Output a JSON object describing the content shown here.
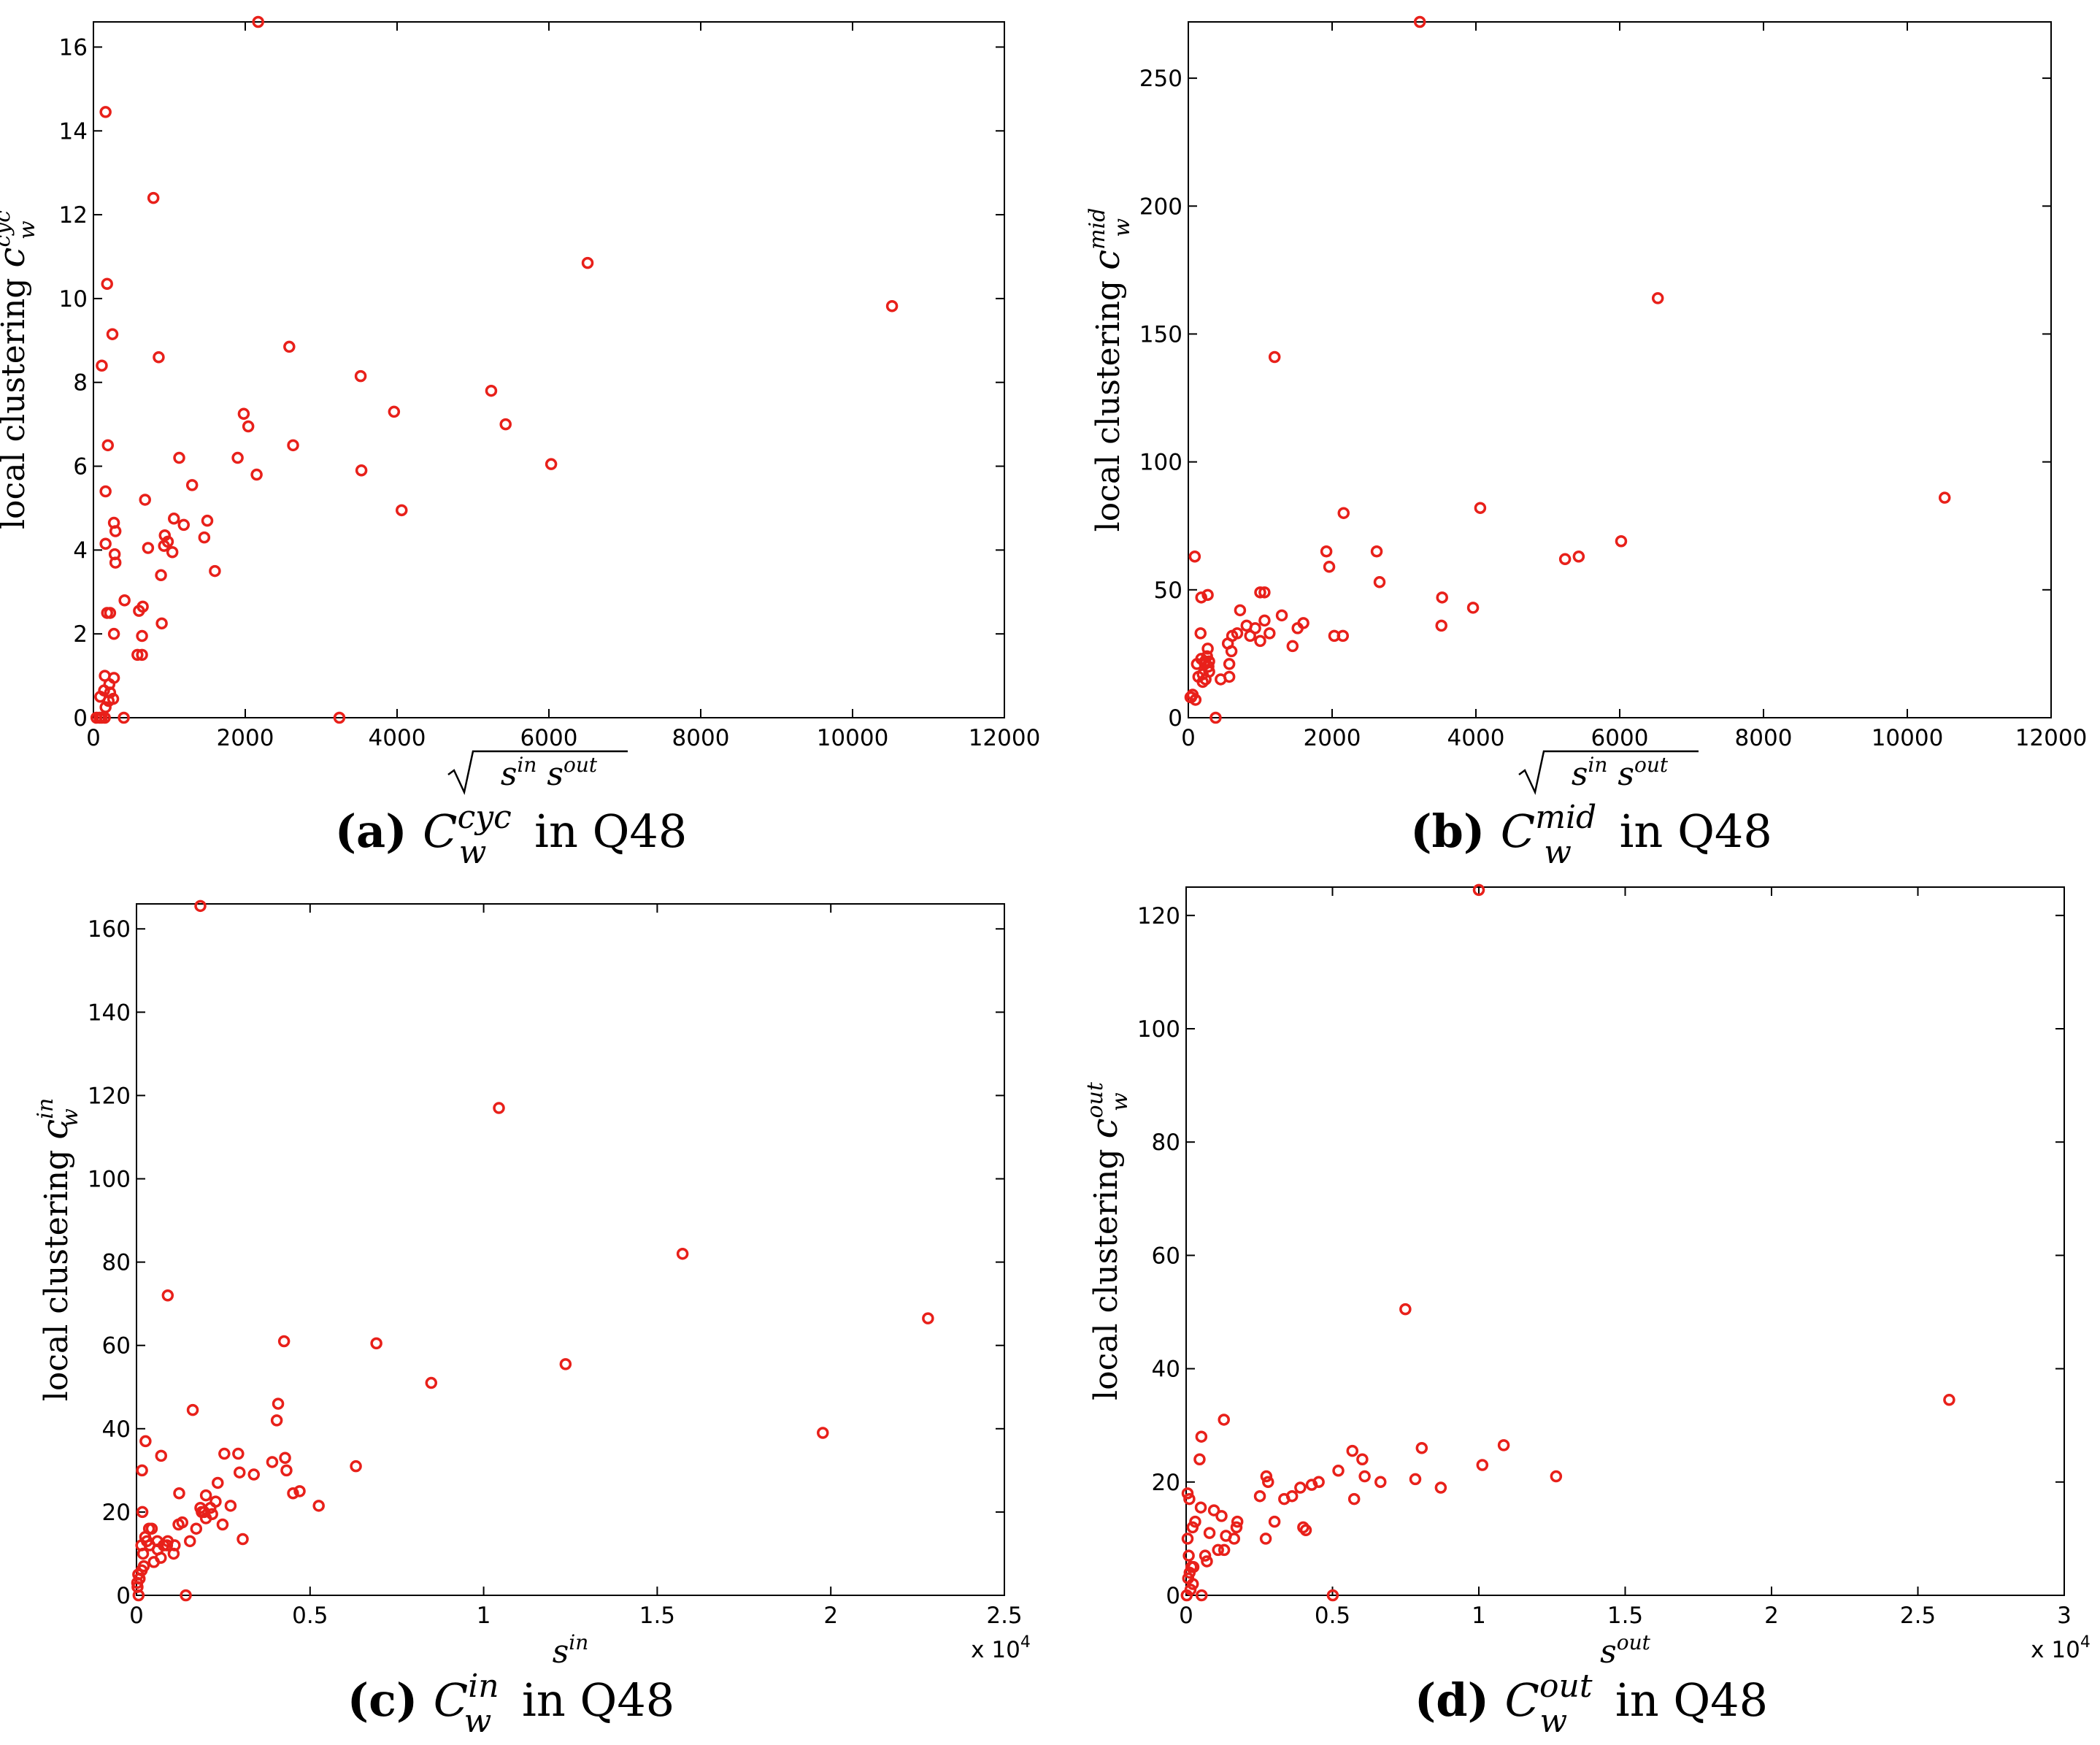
{
  "chart_data": [
    {
      "type": "scatter",
      "panel_letter": "(a)",
      "caption": {
        "base": "C",
        "sub": "w",
        "sup": "cyc",
        "suffix": "in Q48"
      },
      "ylabel": {
        "text": "local clustering ",
        "sym": "c",
        "sub": "w",
        "sup": "cyc"
      },
      "xlabel": {
        "kind": "sqrt",
        "text1": "s",
        "sup1": "in",
        "text2": "s",
        "sup2": "out"
      },
      "xlim": [
        0,
        12000
      ],
      "ylim": [
        0,
        16.6
      ],
      "xticks": [
        0,
        2000,
        4000,
        6000,
        8000,
        10000,
        12000
      ],
      "xtick_labels": [
        "0",
        "2000",
        "4000",
        "6000",
        "8000",
        "10000",
        "12000"
      ],
      "yticks": [
        0,
        2,
        4,
        6,
        8,
        10,
        12,
        14,
        16
      ],
      "ytick_labels": [
        "0",
        "2",
        "4",
        "6",
        "8",
        "10",
        "12",
        "14",
        "16"
      ],
      "x_multiplier": "",
      "marker_color": "#e8201a",
      "points": [
        [
          2170,
          16.6
        ],
        [
          160,
          14.45
        ],
        [
          790,
          12.4
        ],
        [
          180,
          10.35
        ],
        [
          6510,
          10.85
        ],
        [
          10520,
          9.82
        ],
        [
          250,
          9.15
        ],
        [
          110,
          8.4
        ],
        [
          860,
          8.6
        ],
        [
          2580,
          8.85
        ],
        [
          3520,
          8.15
        ],
        [
          1980,
          7.25
        ],
        [
          2040,
          6.95
        ],
        [
          5240,
          7.8
        ],
        [
          3960,
          7.3
        ],
        [
          5430,
          7.0
        ],
        [
          190,
          6.5
        ],
        [
          1900,
          6.2
        ],
        [
          1130,
          6.2
        ],
        [
          2630,
          6.5
        ],
        [
          2150,
          5.8
        ],
        [
          6030,
          6.05
        ],
        [
          3530,
          5.9
        ],
        [
          160,
          5.4
        ],
        [
          1300,
          5.55
        ],
        [
          680,
          5.2
        ],
        [
          4060,
          4.95
        ],
        [
          270,
          4.65
        ],
        [
          1500,
          4.7
        ],
        [
          1060,
          4.75
        ],
        [
          1190,
          4.6
        ],
        [
          290,
          4.45
        ],
        [
          940,
          4.35
        ],
        [
          1460,
          4.3
        ],
        [
          930,
          4.1
        ],
        [
          980,
          4.2
        ],
        [
          160,
          4.15
        ],
        [
          720,
          4.05
        ],
        [
          280,
          3.9
        ],
        [
          1040,
          3.95
        ],
        [
          290,
          3.7
        ],
        [
          890,
          3.4
        ],
        [
          1600,
          3.5
        ],
        [
          410,
          2.8
        ],
        [
          650,
          2.65
        ],
        [
          220,
          2.5
        ],
        [
          180,
          2.5
        ],
        [
          600,
          2.55
        ],
        [
          900,
          2.25
        ],
        [
          270,
          2.0
        ],
        [
          640,
          1.95
        ],
        [
          580,
          1.5
        ],
        [
          640,
          1.5
        ],
        [
          150,
          1.0
        ],
        [
          270,
          0.95
        ],
        [
          210,
          0.8
        ],
        [
          140,
          0.65
        ],
        [
          220,
          0.6
        ],
        [
          90,
          0.5
        ],
        [
          260,
          0.45
        ],
        [
          200,
          0.4
        ],
        [
          160,
          0.25
        ],
        [
          40,
          0.0
        ],
        [
          80,
          0.0
        ],
        [
          110,
          0.0
        ],
        [
          150,
          0.0
        ],
        [
          400,
          0.0
        ],
        [
          3240,
          0.0
        ]
      ]
    },
    {
      "type": "scatter",
      "panel_letter": "(b)",
      "caption": {
        "base": "C",
        "sub": "w",
        "sup": "mid",
        "suffix": "in Q48"
      },
      "ylabel": {
        "text": "local clustering ",
        "sym": "c",
        "sub": "w",
        "sup": "mid"
      },
      "xlabel": {
        "kind": "sqrt",
        "text1": "s",
        "sup1": "in",
        "text2": "s",
        "sup2": "out"
      },
      "xlim": [
        0,
        12000
      ],
      "ylim": [
        0,
        272
      ],
      "xticks": [
        0,
        2000,
        4000,
        6000,
        8000,
        10000,
        12000
      ],
      "xtick_labels": [
        "0",
        "2000",
        "4000",
        "6000",
        "8000",
        "10000",
        "12000"
      ],
      "yticks": [
        0,
        50,
        100,
        150,
        200,
        250
      ],
      "ytick_labels": [
        "0",
        "50",
        "100",
        "150",
        "200",
        "250"
      ],
      "x_multiplier": "",
      "marker_color": "#e8201a",
      "points": [
        [
          3220,
          272
        ],
        [
          6530,
          164
        ],
        [
          1200,
          141
        ],
        [
          10520,
          86
        ],
        [
          4060,
          82
        ],
        [
          2160,
          80
        ],
        [
          6020,
          69
        ],
        [
          1920,
          65
        ],
        [
          2620,
          65
        ],
        [
          5240,
          62
        ],
        [
          5430,
          63
        ],
        [
          90,
          63
        ],
        [
          1960,
          59
        ],
        [
          2660,
          53
        ],
        [
          1000,
          49
        ],
        [
          1060,
          49
        ],
        [
          270,
          48
        ],
        [
          180,
          47
        ],
        [
          3530,
          47
        ],
        [
          3960,
          43
        ],
        [
          720,
          42
        ],
        [
          1300,
          40
        ],
        [
          1060,
          38
        ],
        [
          3520,
          36
        ],
        [
          1600,
          37
        ],
        [
          810,
          36
        ],
        [
          930,
          35
        ],
        [
          1520,
          35
        ],
        [
          680,
          33
        ],
        [
          860,
          32
        ],
        [
          1130,
          33
        ],
        [
          2030,
          32
        ],
        [
          2150,
          32
        ],
        [
          170,
          33
        ],
        [
          610,
          32
        ],
        [
          1000,
          30
        ],
        [
          550,
          29
        ],
        [
          1450,
          28
        ],
        [
          270,
          27
        ],
        [
          600,
          26
        ],
        [
          260,
          24
        ],
        [
          180,
          23
        ],
        [
          230,
          22
        ],
        [
          290,
          22
        ],
        [
          280,
          20
        ],
        [
          230,
          21
        ],
        [
          120,
          21
        ],
        [
          570,
          21
        ],
        [
          290,
          18
        ],
        [
          200,
          17
        ],
        [
          140,
          16
        ],
        [
          570,
          16
        ],
        [
          240,
          15
        ],
        [
          450,
          15
        ],
        [
          200,
          14
        ],
        [
          60,
          9
        ],
        [
          40,
          8
        ],
        [
          100,
          7
        ],
        [
          30,
          8
        ],
        [
          380,
          0
        ]
      ]
    },
    {
      "type": "scatter",
      "panel_letter": "(c)",
      "caption": {
        "base": "C",
        "sub": "w",
        "sup": "in",
        "suffix": "in Q48"
      },
      "ylabel": {
        "text": "local clustering ",
        "sym": "c",
        "sub": "w",
        "sup": "in"
      },
      "xlabel": {
        "kind": "plain",
        "text1": "s",
        "sup1": "in"
      },
      "xlim": [
        0,
        25000
      ],
      "ylim": [
        0,
        166
      ],
      "xticks": [
        0,
        5000,
        10000,
        15000,
        20000,
        25000
      ],
      "xtick_labels": [
        "0",
        "0.5",
        "1",
        "1.5",
        "2",
        "2.5"
      ],
      "yticks": [
        0,
        20,
        40,
        60,
        80,
        100,
        120,
        140,
        160
      ],
      "ytick_labels": [
        "0",
        "20",
        "40",
        "60",
        "80",
        "100",
        "120",
        "140",
        "160"
      ],
      "x_multiplier": "x 10^4",
      "marker_color": "#e8201a",
      "points": [
        [
          1840,
          165.5
        ],
        [
          10440,
          117
        ],
        [
          15730,
          82
        ],
        [
          900,
          72
        ],
        [
          22800,
          66.5
        ],
        [
          4250,
          61
        ],
        [
          6910,
          60.5
        ],
        [
          8490,
          51
        ],
        [
          12360,
          55.5
        ],
        [
          4080,
          46
        ],
        [
          1620,
          44.5
        ],
        [
          4040,
          42
        ],
        [
          19770,
          39
        ],
        [
          260,
          37
        ],
        [
          710,
          33.5
        ],
        [
          2530,
          34
        ],
        [
          2930,
          34
        ],
        [
          4280,
          33
        ],
        [
          3910,
          32
        ],
        [
          160,
          30
        ],
        [
          6320,
          31
        ],
        [
          2970,
          29.5
        ],
        [
          3380,
          29
        ],
        [
          4320,
          30
        ],
        [
          5250,
          21.5
        ],
        [
          4700,
          25
        ],
        [
          4510,
          24.5
        ],
        [
          2340,
          27
        ],
        [
          2710,
          21.5
        ],
        [
          1230,
          24.5
        ],
        [
          2000,
          24
        ],
        [
          2280,
          22.5
        ],
        [
          2130,
          21
        ],
        [
          2480,
          17
        ],
        [
          1880,
          20
        ],
        [
          1950,
          20
        ],
        [
          1840,
          21
        ],
        [
          2180,
          19.5
        ],
        [
          1720,
          16
        ],
        [
          2000,
          18.5
        ],
        [
          1320,
          17.5
        ],
        [
          1540,
          13
        ],
        [
          1210,
          17
        ],
        [
          3060,
          13.5
        ],
        [
          360,
          16
        ],
        [
          440,
          16
        ],
        [
          250,
          14
        ],
        [
          600,
          13
        ],
        [
          900,
          13
        ],
        [
          1070,
          10
        ],
        [
          1100,
          12
        ],
        [
          880,
          12
        ],
        [
          780,
          12
        ],
        [
          610,
          11
        ],
        [
          700,
          9
        ],
        [
          500,
          8
        ],
        [
          300,
          13
        ],
        [
          380,
          12
        ],
        [
          140,
          12
        ],
        [
          190,
          10
        ],
        [
          210,
          7
        ],
        [
          150,
          6
        ],
        [
          50,
          5
        ],
        [
          90,
          4
        ],
        [
          20,
          3
        ],
        [
          30,
          2
        ],
        [
          60,
          0
        ],
        [
          1420,
          0
        ],
        [
          170,
          20
        ]
      ]
    },
    {
      "type": "scatter",
      "panel_letter": "(d)",
      "caption": {
        "base": "C",
        "sub": "w",
        "sup": "out",
        "suffix": "in Q48"
      },
      "ylabel": {
        "text": "local clustering ",
        "sym": "c",
        "sub": "w",
        "sup": "out"
      },
      "xlabel": {
        "kind": "plain",
        "text1": "s",
        "sup1": "out"
      },
      "xlim": [
        0,
        30000
      ],
      "ylim": [
        0,
        125
      ],
      "xticks": [
        0,
        5000,
        10000,
        15000,
        20000,
        25000,
        30000
      ],
      "xtick_labels": [
        "0",
        "0.5",
        "1",
        "1.5",
        "2",
        "2.5",
        "3"
      ],
      "yticks": [
        0,
        20,
        40,
        60,
        80,
        100,
        120
      ],
      "ytick_labels": [
        "0",
        "20",
        "40",
        "60",
        "80",
        "100",
        "120"
      ],
      "x_multiplier": "x 10^4",
      "marker_color": "#e8201a",
      "points": [
        [
          10000,
          124.5
        ],
        [
          7490,
          50.5
        ],
        [
          26070,
          34.5
        ],
        [
          1290,
          31
        ],
        [
          520,
          28
        ],
        [
          10850,
          26.5
        ],
        [
          5680,
          25.5
        ],
        [
          8050,
          26
        ],
        [
          6020,
          24
        ],
        [
          460,
          24
        ],
        [
          10120,
          23
        ],
        [
          6640,
          20
        ],
        [
          6100,
          21
        ],
        [
          7830,
          20.5
        ],
        [
          5200,
          22
        ],
        [
          12640,
          21
        ],
        [
          8700,
          19
        ],
        [
          2740,
          21
        ],
        [
          2800,
          20
        ],
        [
          4290,
          19.5
        ],
        [
          4530,
          20
        ],
        [
          3900,
          19
        ],
        [
          3620,
          17.5
        ],
        [
          3350,
          17
        ],
        [
          5740,
          17
        ],
        [
          2520,
          17.5
        ],
        [
          50,
          18
        ],
        [
          110,
          17
        ],
        [
          500,
          15.5
        ],
        [
          310,
          13
        ],
        [
          220,
          12
        ],
        [
          950,
          15
        ],
        [
          1210,
          14
        ],
        [
          1750,
          13
        ],
        [
          1720,
          12
        ],
        [
          3020,
          13
        ],
        [
          4000,
          12
        ],
        [
          4090,
          11.5
        ],
        [
          1360,
          10.5
        ],
        [
          1640,
          10
        ],
        [
          2720,
          10
        ],
        [
          800,
          11
        ],
        [
          1090,
          8
        ],
        [
          1300,
          8
        ],
        [
          650,
          7
        ],
        [
          710,
          6
        ],
        [
          50,
          10
        ],
        [
          90,
          7
        ],
        [
          180,
          5
        ],
        [
          250,
          5
        ],
        [
          120,
          4
        ],
        [
          70,
          3
        ],
        [
          230,
          2
        ],
        [
          150,
          1
        ],
        [
          20,
          0
        ],
        [
          530,
          0
        ],
        [
          5010,
          0
        ]
      ]
    }
  ]
}
